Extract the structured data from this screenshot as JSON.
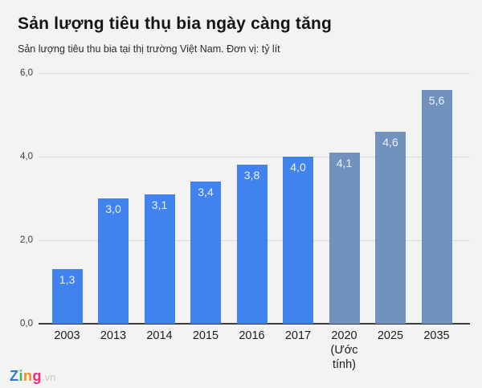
{
  "header": {
    "title": "Sản lượng tiêu thụ bia ngày càng tăng",
    "subtitle": "Sản lượng tiêu thu bia tại thị trường Việt Nam. Đơn vị: tỷ lít"
  },
  "chart_data": {
    "type": "bar",
    "title": "Sản lượng tiêu thụ bia ngày càng tăng",
    "subtitle": "Sản lượng tiêu thu bia tại thị trường Việt Nam. Đơn vị: tỷ lít",
    "unit": "tỷ lít",
    "categories": [
      "2003",
      "2013",
      "2014",
      "2015",
      "2016",
      "2017",
      "2020 (Ước tính)",
      "2025",
      "2035"
    ],
    "values": [
      1.3,
      3.0,
      3.1,
      3.4,
      3.8,
      4.0,
      4.1,
      4.6,
      5.6
    ],
    "value_labels": [
      "1,3",
      "3,0",
      "3,1",
      "3,4",
      "3,8",
      "4,0",
      "4,1",
      "4,6",
      "5,6"
    ],
    "bar_colors": [
      "#4083ee",
      "#4083ee",
      "#4083ee",
      "#4083ee",
      "#4083ee",
      "#4083ee",
      "#7292be",
      "#7292be",
      "#7292be"
    ],
    "color_legend": {
      "actual": "#4083ee",
      "estimate": "#7292be"
    },
    "ylim": [
      0,
      6
    ],
    "yticks": [
      {
        "value": 0,
        "label": "0,0"
      },
      {
        "value": 2,
        "label": "2,0"
      },
      {
        "value": 4,
        "label": "4,0"
      },
      {
        "value": 6,
        "label": "6,0"
      }
    ],
    "grid": true,
    "xlabel": "",
    "ylabel": ""
  },
  "footer": {
    "logo": {
      "letters": [
        {
          "char": "Z",
          "color": "#2b7bd4"
        },
        {
          "char": "i",
          "color": "#3cb54a"
        },
        {
          "char": "n",
          "color": "#f6891e"
        },
        {
          "char": "g",
          "color": "#ee2a7b"
        }
      ],
      "suffix": ".vn",
      "suffix_color": "#c7ccc7"
    }
  }
}
